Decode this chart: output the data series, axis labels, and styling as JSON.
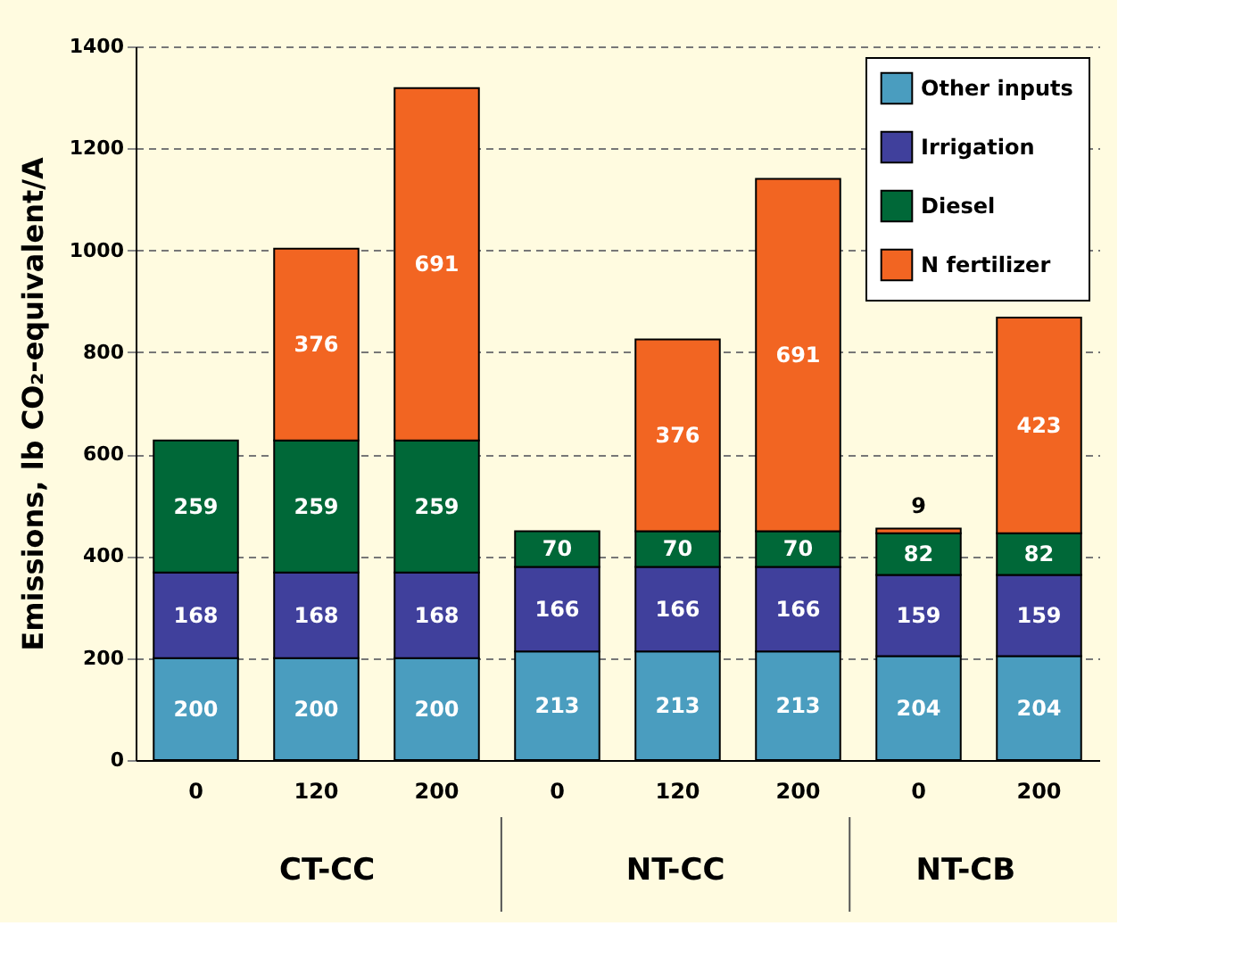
{
  "chart_data": {
    "type": "bar",
    "stacked": true,
    "ylabel": "Emissions, lb CO₂-equivalent/A",
    "categories": [
      "0",
      "120",
      "200",
      "0",
      "120",
      "200",
      "0",
      "200"
    ],
    "series": [
      {
        "name": "Other inputs",
        "color": "#4a9dbf",
        "values": [
          200,
          200,
          200,
          213,
          213,
          213,
          204,
          204
        ]
      },
      {
        "name": "Irrigation",
        "color": "#40409c",
        "values": [
          168,
          168,
          168,
          166,
          166,
          166,
          159,
          159
        ]
      },
      {
        "name": "Diesel",
        "color": "#006838",
        "values": [
          259,
          259,
          259,
          70,
          70,
          70,
          82,
          82
        ]
      },
      {
        "name": "N fertilizer",
        "color": "#f26522",
        "values": [
          null,
          376,
          691,
          null,
          376,
          691,
          9,
          423
        ]
      }
    ],
    "ylim": [
      0,
      1400
    ],
    "yticks": [
      0,
      200,
      400,
      600,
      800,
      1000,
      1200,
      1400
    ],
    "grid": "y",
    "legend": "top right",
    "data_labels": true,
    "annotations": [
      "CT-CC",
      "NT-CC",
      "NT-CB"
    ]
  }
}
